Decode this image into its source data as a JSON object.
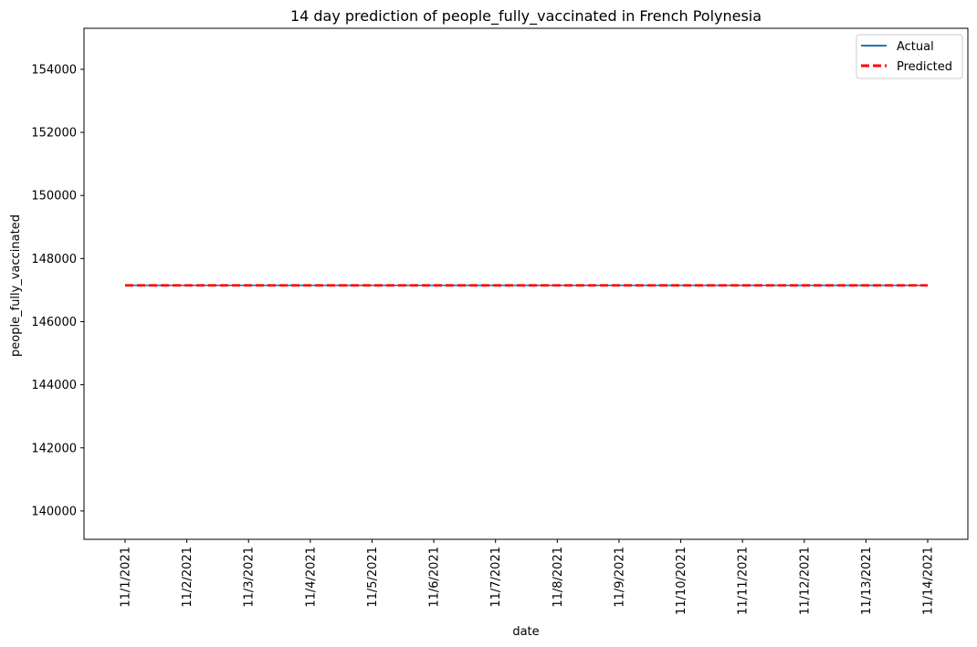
{
  "chart_data": {
    "type": "line",
    "title": "14 day prediction of people_fully_vaccinated in French Polynesia",
    "xlabel": "date",
    "ylabel": "people_fully_vaccinated",
    "x": [
      "11/1/2021",
      "11/2/2021",
      "11/3/2021",
      "11/4/2021",
      "11/5/2021",
      "11/6/2021",
      "11/7/2021",
      "11/8/2021",
      "11/9/2021",
      "11/10/2021",
      "11/11/2021",
      "11/12/2021",
      "11/13/2021",
      "11/14/2021"
    ],
    "ylim": [
      139100,
      155300
    ],
    "yticks": [
      "140000",
      "142000",
      "144000",
      "146000",
      "148000",
      "150000",
      "152000",
      "154000"
    ],
    "grid": false,
    "legend_position": "top-right",
    "series": [
      {
        "name": "Actual",
        "color": "#1f77b4",
        "style": "solid",
        "values": [
          147150,
          147150,
          147150,
          147150,
          147150,
          147150,
          147150,
          147150,
          147150,
          147150,
          147150,
          147150,
          147150,
          147150
        ]
      },
      {
        "name": "Predicted",
        "color": "#ff0000",
        "style": "dashed",
        "values": [
          147150,
          147150,
          147150,
          147150,
          147150,
          147150,
          147150,
          147150,
          147150,
          147150,
          147150,
          147150,
          147150,
          147150
        ]
      }
    ]
  }
}
